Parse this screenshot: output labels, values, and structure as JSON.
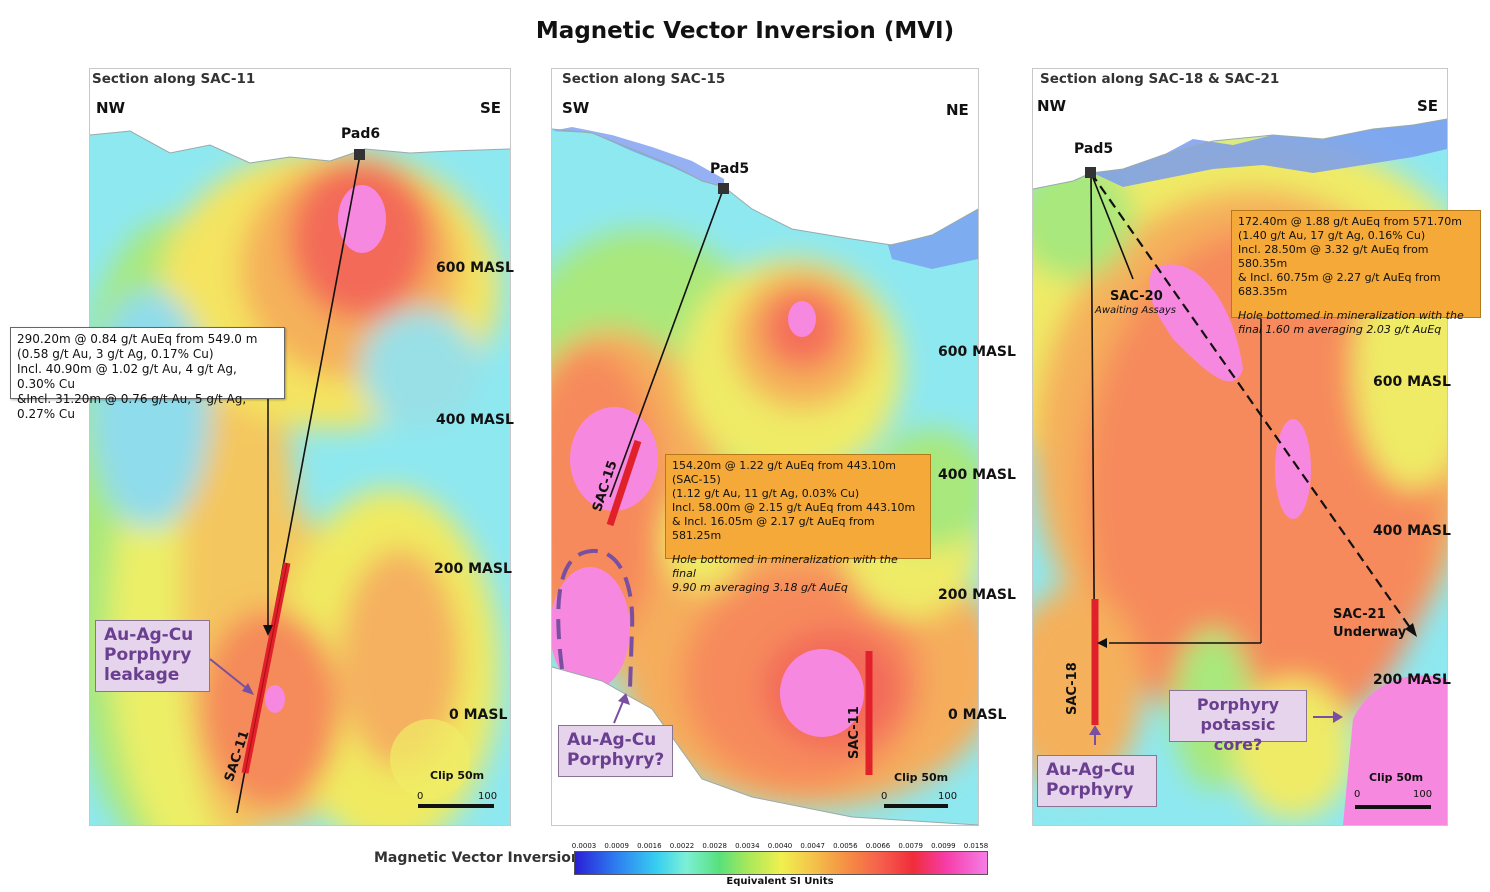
{
  "title": "Magnetic Vector Inversion (MVI)",
  "panels": [
    {
      "section": "Section along SAC-11",
      "left_dir": "NW",
      "right_dir": "SE",
      "pad": "Pad6",
      "levels": [
        "600 MASL",
        "400 MASL",
        "200 MASL",
        "0 MASL"
      ],
      "hole": "SAC-11",
      "annotation": [
        "290.20m @ 0.84 g/t AuEq from 549.0 m",
        "(0.58 g/t Au, 3 g/t Ag, 0.17% Cu)",
        "Incl.   40.90m @ 1.02 g/t Au, 4 g/t Ag, 0.30% Cu",
        "&Incl. 31.20m @ 0.76 g/t Au, 5 g/t Ag, 0.27% Cu"
      ],
      "callout": [
        "Au-Ag-Cu",
        "Porphyry",
        "leakage"
      ],
      "clip": "Clip 50m",
      "scale_min": "0",
      "scale_max": "100"
    },
    {
      "section": "Section along SAC-15",
      "left_dir": "SW",
      "right_dir": "NE",
      "pad": "Pad5",
      "levels": [
        "600 MASL",
        "400 MASL",
        "200 MASL",
        "0 MASL"
      ],
      "hole": "SAC-15",
      "hole2": "SAC-11",
      "annotation": [
        "154.20m @ 1.22 g/t AuEq from 443.10m (SAC-15)",
        "(1.12 g/t Au, 11 g/t Ag, 0.03% Cu)",
        "Incl.    58.00m @ 2.15 g/t AuEq from 443.10m",
        "& Incl. 16.05m @ 2.17 g/t AuEq from 581.25m"
      ],
      "annotation_note": [
        "Hole bottomed in mineralization with the final",
        "9.90 m averaging 3.18 g/t AuEq"
      ],
      "callout": [
        "Au-Ag-Cu",
        "Porphyry?"
      ],
      "clip": "Clip 50m",
      "scale_min": "0",
      "scale_max": "100"
    },
    {
      "section": "Section along SAC-18 & SAC-21",
      "left_dir": "NW",
      "right_dir": "SE",
      "pad": "Pad5",
      "levels": [
        "600 MASL",
        "400 MASL",
        "200 MASL"
      ],
      "hole": "SAC-18",
      "hole_sac20": "SAC-20",
      "sac20_status": "Awaiting Assays",
      "hole_sac21": "SAC-21",
      "sac21_status": "Underway",
      "annotation": [
        "172.40m @ 1.88 g/t AuEq from 571.70m",
        "(1.40 g/t Au, 17 g/t Ag, 0.16% Cu)",
        "Incl.    28.50m @ 3.32 g/t AuEq from 580.35m",
        "& Incl. 60.75m @ 2.27 g/t AuEq from 683.35m"
      ],
      "annotation_note": [
        "Hole bottomed in mineralization with the",
        "final 1.60 m  averaging 2.03 g/t AuEq"
      ],
      "callout": [
        "Au-Ag-Cu",
        "Porphyry"
      ],
      "callout2": [
        "Porphyry",
        "potassic core?"
      ],
      "clip": "Clip 50m",
      "scale_min": "0",
      "scale_max": "100"
    }
  ],
  "legend": {
    "title": "Magnetic Vector Inversion",
    "units": "Equivalent SI Units",
    "ticks": [
      "0.0003",
      "0.0009",
      "0.0016",
      "0.0022",
      "0.0028",
      "0.0034",
      "0.0040",
      "0.0047",
      "0.0056",
      "0.0066",
      "0.0079",
      "0.0099",
      "0.0158"
    ]
  }
}
